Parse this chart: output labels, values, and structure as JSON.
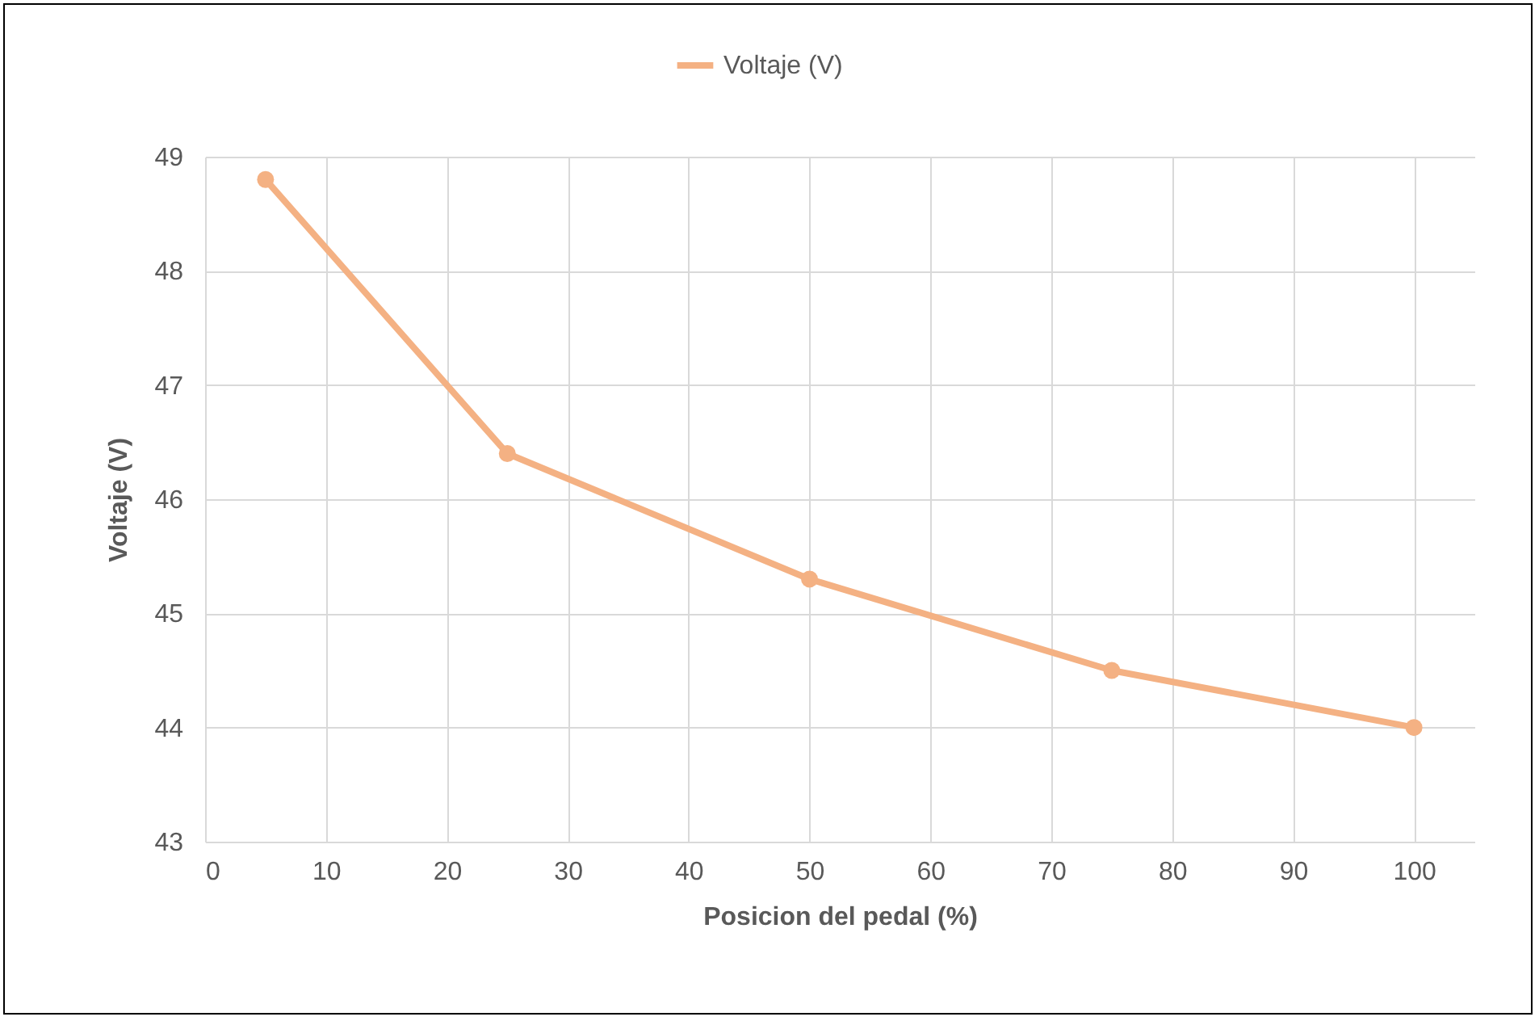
{
  "chart_data": {
    "type": "line",
    "xlabel": "Posicion del pedal (%)",
    "ylabel": "Voltaje (V)",
    "x": [
      5,
      25,
      50,
      75,
      100
    ],
    "series": [
      {
        "name": "Voltaje (V)",
        "color": "#f4b183",
        "values": [
          48.8,
          46.4,
          45.3,
          44.5,
          44.0
        ]
      }
    ],
    "xlim": [
      0,
      105
    ],
    "xticks": [
      0,
      10,
      20,
      30,
      40,
      50,
      60,
      70,
      80,
      90,
      100
    ],
    "ylim": [
      43,
      49
    ],
    "yticks": [
      43,
      44,
      45,
      46,
      47,
      48,
      49
    ],
    "grid": true,
    "legend": "top",
    "marker": "circle",
    "line_style": "solid"
  }
}
